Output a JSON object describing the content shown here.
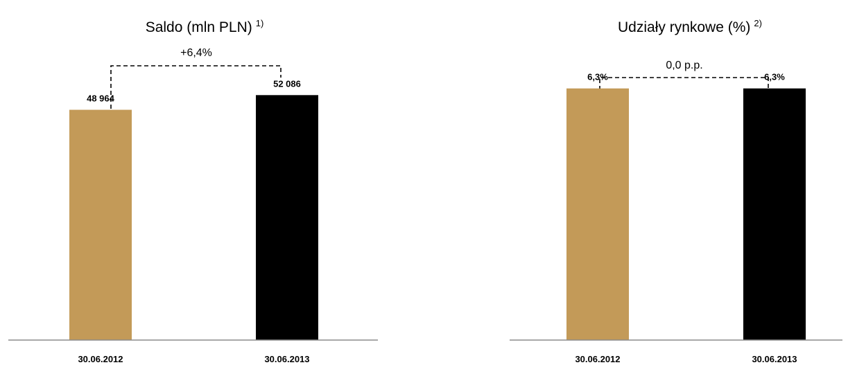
{
  "colors": {
    "bar_2012": "#c39a58",
    "bar_2013": "#000000",
    "axis": "#8c8c8c",
    "bracket": "#000000"
  },
  "chart_data": [
    {
      "type": "bar",
      "title": "Saldo (mln PLN)",
      "title_footnote": "1)",
      "categories": [
        "30.06.2012",
        "30.06.2013"
      ],
      "values": [
        48964,
        52086
      ],
      "value_labels": [
        "48 964",
        "52 086"
      ],
      "change_label": "+6,4%",
      "ylim": [
        0,
        62000
      ],
      "grid": false,
      "xlabel": "",
      "ylabel": ""
    },
    {
      "type": "bar",
      "title": "Udziały rynkowe (%)",
      "title_footnote": "2)",
      "categories": [
        "30.06.2012",
        "30.06.2013"
      ],
      "values": [
        6.3,
        6.3
      ],
      "value_labels": [
        "6,3%",
        "6,3%"
      ],
      "change_label": "0,0 p.p.",
      "ylim": [
        0,
        7.3
      ],
      "grid": false,
      "xlabel": "",
      "ylabel": ""
    }
  ]
}
